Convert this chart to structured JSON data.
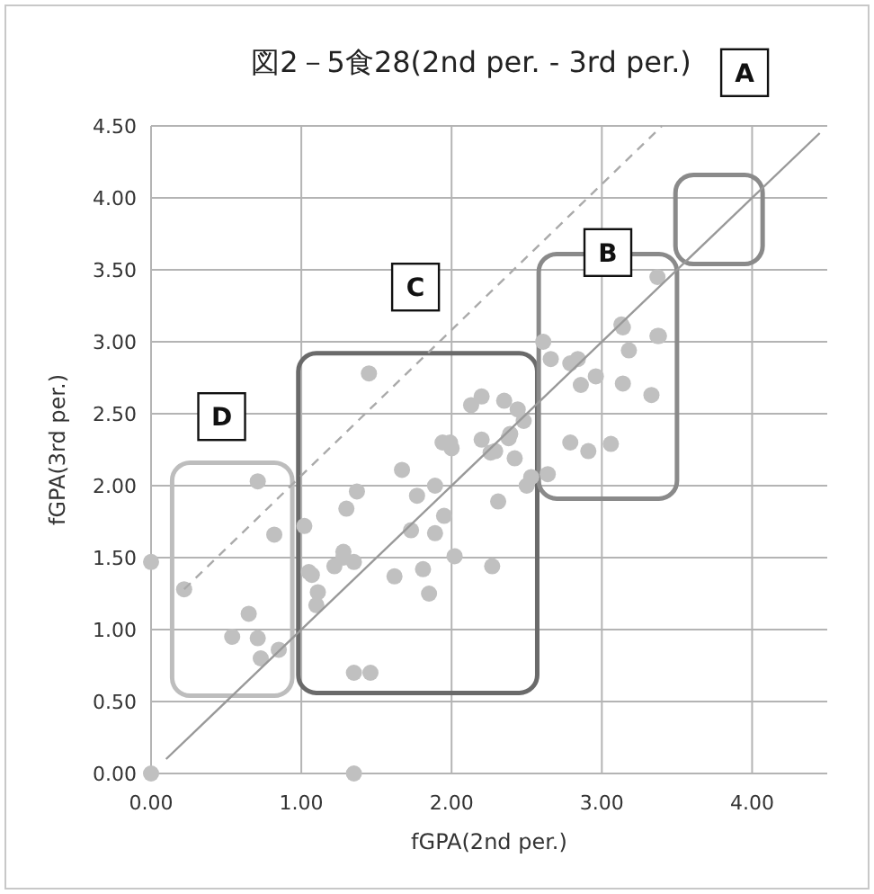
{
  "chart_data": {
    "type": "scatter",
    "title": "図2－5食28(2nd per. - 3rd per.)",
    "xlabel": "fGPA(2nd per.)",
    "ylabel": "fGPA(3rd per.)",
    "xlim": [
      0,
      4.5
    ],
    "ylim": [
      0,
      4.5
    ],
    "xticks": [
      {
        "value": 0,
        "label": "0.00"
      },
      {
        "value": 1,
        "label": "1.00"
      },
      {
        "value": 2,
        "label": "2.00"
      },
      {
        "value": 3,
        "label": "3.00"
      },
      {
        "value": 4,
        "label": "4.00"
      }
    ],
    "yticks": [
      {
        "value": 0,
        "label": "0.00"
      },
      {
        "value": 0.5,
        "label": "0.50"
      },
      {
        "value": 1,
        "label": "1.00"
      },
      {
        "value": 1.5,
        "label": "1.50"
      },
      {
        "value": 2,
        "label": "2.00"
      },
      {
        "value": 2.5,
        "label": "2.50"
      },
      {
        "value": 3,
        "label": "3.00"
      },
      {
        "value": 3.5,
        "label": "3.50"
      },
      {
        "value": 4,
        "label": "4.00"
      },
      {
        "value": 4.5,
        "label": "4.50"
      }
    ],
    "grid": true,
    "marker": "circle",
    "annotations": [
      "A",
      "B",
      "C",
      "D"
    ],
    "series": [
      {
        "color": "#c0c0c0",
        "x": [
          0,
          0,
          0.22,
          0.71,
          0.82,
          0.65,
          0.54,
          0.71,
          0.73,
          0.85,
          1.35,
          1.35,
          1.46,
          1.45,
          1.02,
          1.05,
          1.07,
          1.11,
          1.1,
          1.22,
          1.28,
          1.28,
          1.35,
          1.3,
          1.37,
          1.62,
          1.67,
          1.73,
          1.77,
          1.81,
          1.85,
          1.89,
          1.89,
          1.95,
          2.02,
          1.94,
          1.99,
          2.0,
          2.13,
          2.2,
          2.2,
          2.26,
          2.27,
          2.31,
          2.35,
          2.44,
          2.48,
          2.29,
          2.38,
          2.39,
          2.42,
          2.5,
          2.53,
          2.64,
          2.61,
          2.66,
          2.79,
          2.84,
          2.86,
          2.96,
          3.14,
          3.18,
          3.38,
          3.33,
          3.14,
          2.79,
          2.91,
          3.06,
          3.37,
          3.13,
          3.37
        ],
        "values": [
          0,
          1.47,
          1.28,
          2.03,
          1.66,
          1.11,
          0.95,
          0.94,
          0.8,
          0.86,
          0,
          0.7,
          0.7,
          2.78,
          1.72,
          1.4,
          1.38,
          1.26,
          1.17,
          1.44,
          1.54,
          1.5,
          1.47,
          1.84,
          1.96,
          1.37,
          2.11,
          1.69,
          1.93,
          1.42,
          1.25,
          1.67,
          2.0,
          1.79,
          1.51,
          2.3,
          2.3,
          2.26,
          2.56,
          2.62,
          2.32,
          2.23,
          1.44,
          1.89,
          2.59,
          2.53,
          2.45,
          2.24,
          2.33,
          2.36,
          2.19,
          2.0,
          2.06,
          2.08,
          3.0,
          2.88,
          2.85,
          2.88,
          2.7,
          2.76,
          2.71,
          2.94,
          3.04,
          2.63,
          3.1,
          2.3,
          2.24,
          2.29,
          3.45,
          3.12,
          3.04
        ]
      },
      {
        "type": "line",
        "color": "#999999",
        "line_style": "solid",
        "marker": "none",
        "x": [
          0.1,
          4.45
        ],
        "values": [
          0.1,
          4.45
        ]
      },
      {
        "type": "line",
        "color": "#aaaaaa",
        "line_style": "dashed",
        "marker": "none",
        "x": [
          0.22,
          3.4
        ],
        "values": [
          1.28,
          4.5
        ]
      }
    ]
  }
}
